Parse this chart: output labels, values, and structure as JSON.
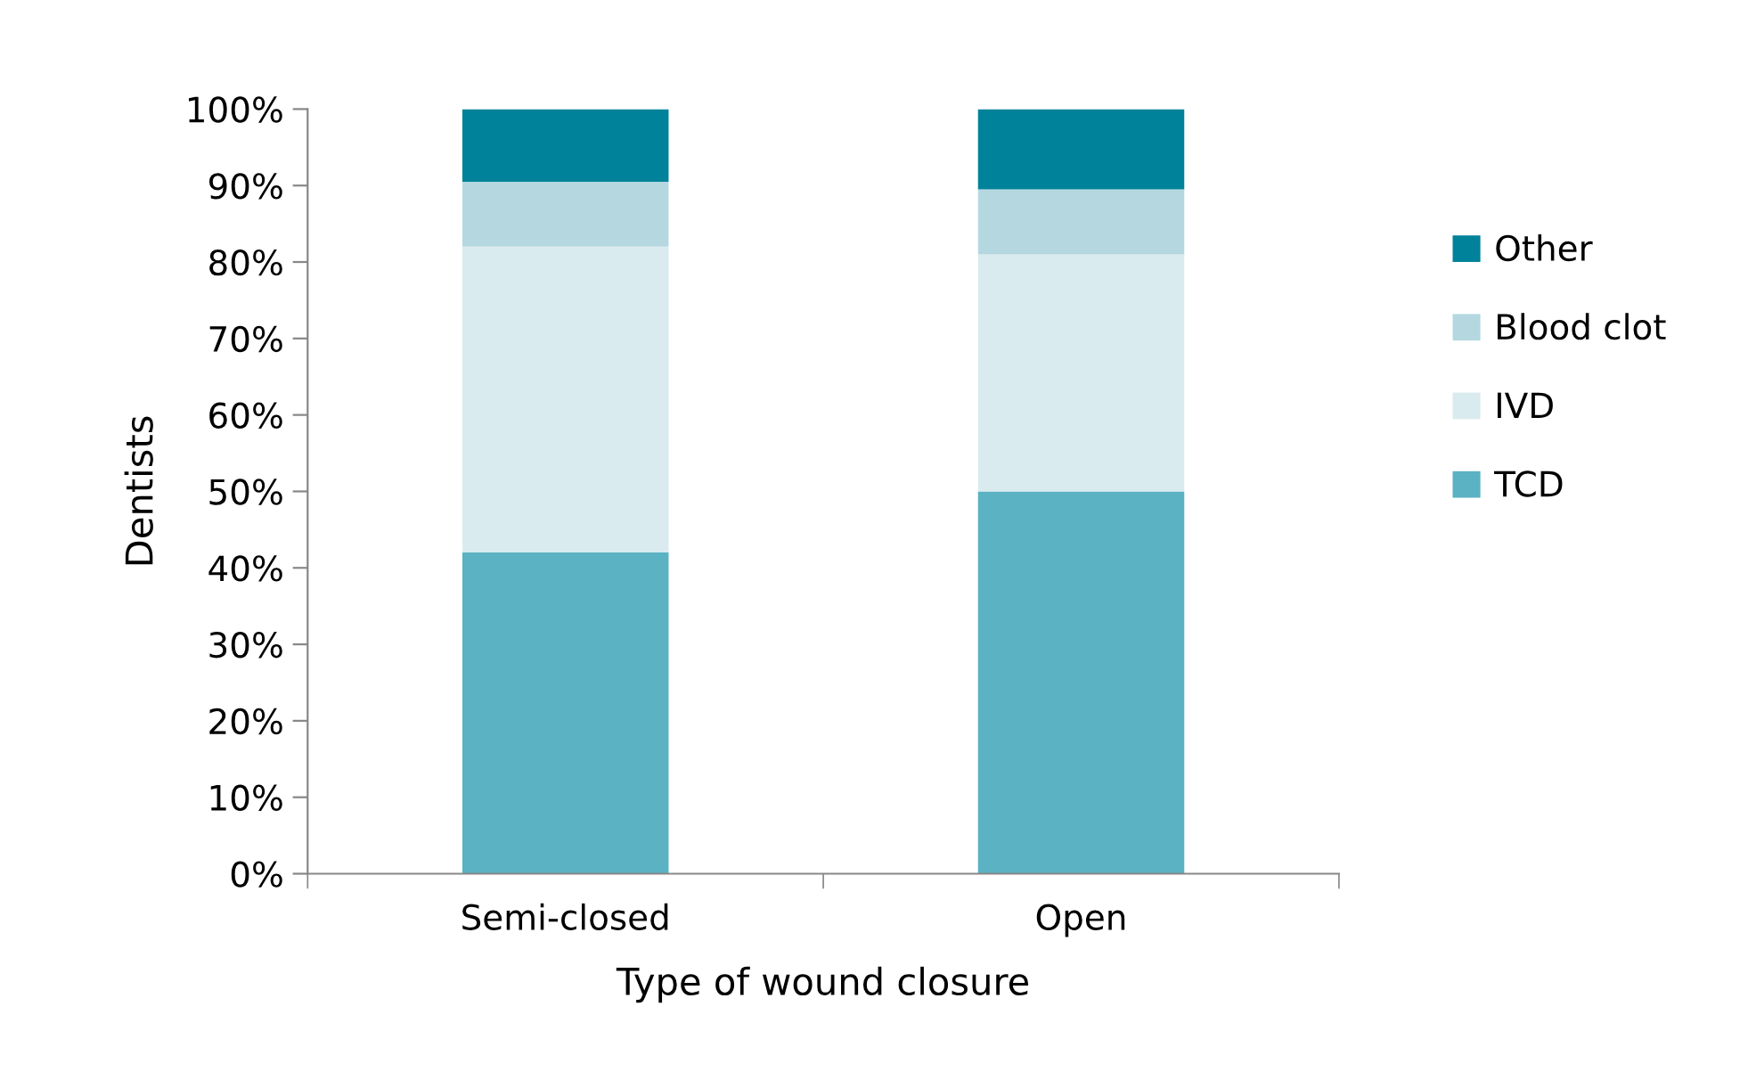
{
  "chart_data": {
    "type": "bar",
    "stacked": true,
    "xlabel": "Type of wound closure",
    "ylabel": "Dentists",
    "categories": [
      "Semi-closed",
      "Open"
    ],
    "series": [
      {
        "name": "TCD",
        "color": "#5ab2c2",
        "values": [
          42,
          50
        ]
      },
      {
        "name": "IVD",
        "color": "#daebef",
        "values": [
          40,
          31
        ]
      },
      {
        "name": "Blood clot",
        "color": "#b5d8e0",
        "values": [
          8.5,
          8.5
        ]
      },
      {
        "name": "Other",
        "color": "#00829a",
        "values": [
          9.5,
          10.5
        ]
      }
    ],
    "ylim": [
      0,
      100
    ],
    "yticks": [
      {
        "value": 0,
        "label": "0%"
      },
      {
        "value": 10,
        "label": "10%"
      },
      {
        "value": 20,
        "label": "20%"
      },
      {
        "value": 30,
        "label": "30%"
      },
      {
        "value": 40,
        "label": "40%"
      },
      {
        "value": 50,
        "label": "50%"
      },
      {
        "value": 60,
        "label": "60%"
      },
      {
        "value": 70,
        "label": "70%"
      },
      {
        "value": 80,
        "label": "80%"
      },
      {
        "value": 90,
        "label": "90%"
      },
      {
        "value": 100,
        "label": "100%"
      }
    ],
    "legend": "right"
  }
}
